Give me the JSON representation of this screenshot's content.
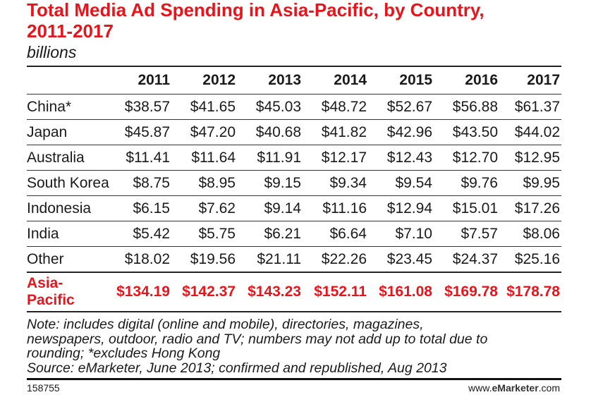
{
  "chart_data": {
    "type": "table",
    "title_line1": "Total Media Ad Spending in Asia-Pacific, by Country,",
    "title_line2": "2011-2017",
    "subtitle": "billions",
    "columns": [
      "",
      "2011",
      "2012",
      "2013",
      "2014",
      "2015",
      "2016",
      "2017"
    ],
    "rows": [
      {
        "label": "China*",
        "values": [
          "$38.57",
          "$41.65",
          "$45.03",
          "$48.72",
          "$52.67",
          "$56.88",
          "$61.37"
        ]
      },
      {
        "label": "Japan",
        "values": [
          "$45.87",
          "$47.20",
          "$40.68",
          "$41.82",
          "$42.96",
          "$43.50",
          "$44.02"
        ]
      },
      {
        "label": "Australia",
        "values": [
          "$11.41",
          "$11.64",
          "$11.91",
          "$12.17",
          "$12.43",
          "$12.70",
          "$12.95"
        ]
      },
      {
        "label": "South Korea",
        "values": [
          "$8.75",
          "$8.95",
          "$9.15",
          "$9.34",
          "$9.54",
          "$9.76",
          "$9.95"
        ]
      },
      {
        "label": "Indonesia",
        "values": [
          "$6.15",
          "$7.62",
          "$9.14",
          "$11.16",
          "$12.94",
          "$15.01",
          "$17.26"
        ]
      },
      {
        "label": "India",
        "values": [
          "$5.42",
          "$5.75",
          "$6.21",
          "$6.64",
          "$7.10",
          "$7.57",
          "$8.06"
        ]
      },
      {
        "label": "Other",
        "values": [
          "$18.02",
          "$19.56",
          "$21.11",
          "$22.26",
          "$23.45",
          "$24.37",
          "$25.16"
        ]
      }
    ],
    "total": {
      "label": "Asia-Pacific",
      "values": [
        "$134.19",
        "$142.37",
        "$143.23",
        "$152.11",
        "$161.08",
        "$169.78",
        "$178.78"
      ]
    },
    "note_lines": [
      "Note: includes digital (online and mobile), directories, magazines,",
      "newspapers, outdoor, radio and TV; numbers may not add up to total due to",
      "rounding; *excludes Hong Kong",
      "Source: eMarketer, June 2013; confirmed and republished, Aug 2013"
    ],
    "footer_id": "158755",
    "footer_brand_prefix": "www.",
    "footer_brand_name": "eMarketer",
    "footer_brand_suffix": ".com",
    "accent_color": "#e8141c"
  }
}
